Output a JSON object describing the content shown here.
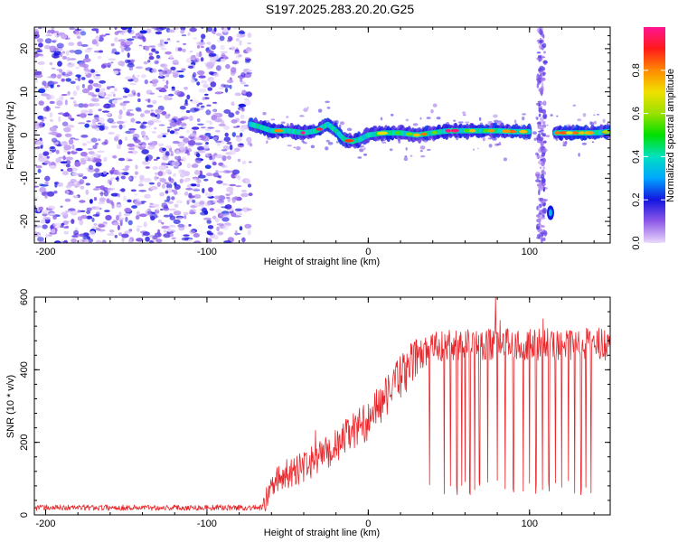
{
  "title": "S197.2025.283.20.20.G25",
  "chart_data": [
    {
      "type": "heatmap",
      "title": "S197.2025.283.20.20.G25",
      "xlabel": "Height of straight line (km)",
      "ylabel": "Frequency (Hz)",
      "xlim": [
        -207,
        150
      ],
      "ylim": [
        -25,
        25
      ],
      "xticks": [
        -200,
        -100,
        0,
        100
      ],
      "yticks": [
        -20,
        -10,
        0,
        10,
        20
      ],
      "tick_labels_x": [
        "-200",
        "-100",
        "0",
        "100"
      ],
      "tick_labels_y": [
        "-20",
        "-10",
        "0",
        "10",
        "20"
      ],
      "noise_region_x": [
        -207,
        -73
      ],
      "signal_track": {
        "x": [
          -73,
          -68,
          -60,
          -50,
          -40,
          -32,
          -25,
          -20,
          -15,
          -10,
          -5,
          0,
          10,
          20,
          30,
          40,
          50,
          60,
          70,
          80,
          90,
          95,
          100,
          105,
          110,
          115,
          120,
          130,
          140,
          150
        ],
        "freq": [
          2.5,
          2.0,
          1.0,
          1.0,
          0.5,
          1.0,
          2.5,
          1.0,
          -1.0,
          -1.5,
          -1.0,
          0.0,
          0.5,
          0.5,
          0.0,
          0.5,
          1.0,
          1.0,
          1.0,
          1.0,
          0.8,
          0.8,
          0.8,
          null,
          null,
          0.5,
          0.5,
          0.5,
          0.5,
          0.8
        ]
      },
      "gap_x": [
        105,
        113
      ],
      "spike_feature": {
        "x": 113,
        "freq": -18
      }
    },
    {
      "type": "line",
      "xlabel": "Height of straight line (km)",
      "ylabel": "SNR (10 * v/v)",
      "xlim": [
        -207,
        150
      ],
      "ylim": [
        0,
        600
      ],
      "xticks": [
        -200,
        -100,
        0,
        100
      ],
      "yticks": [
        0,
        200,
        400,
        600
      ],
      "tick_labels_x": [
        "-200",
        "-100",
        "0",
        "100"
      ],
      "tick_labels_y": [
        "0",
        "200",
        "400",
        "600"
      ],
      "line_color": "#e8262b",
      "trend": {
        "x": [
          -207,
          -150,
          -100,
          -65,
          -60,
          -50,
          -40,
          -30,
          -20,
          -10,
          0,
          10,
          20,
          30,
          40,
          60,
          80,
          100,
          120,
          150
        ],
        "snr": [
          20,
          20,
          20,
          20,
          90,
          110,
          130,
          160,
          190,
          230,
          260,
          320,
          380,
          430,
          460,
          470,
          470,
          470,
          470,
          470
        ]
      },
      "dropouts_x": [
        38,
        47,
        51,
        55,
        58,
        60,
        63,
        66,
        69,
        74,
        80,
        85,
        90,
        96,
        100,
        104,
        108,
        112,
        116,
        120,
        124,
        128,
        132,
        135,
        138
      ],
      "dropout_min": 55,
      "peak": {
        "x": 79,
        "snr": 600
      }
    }
  ],
  "colorbar": {
    "label": "Normalized spectral amplitude",
    "range": [
      0,
      1
    ],
    "ticks": [
      0.0,
      0.2,
      0.4,
      0.6,
      0.8
    ],
    "tick_labels": [
      "0.0",
      "0.2",
      "0.4",
      "0.6",
      "0.8"
    ],
    "stops": [
      {
        "v": 0.0,
        "color": "#e9d8fb"
      },
      {
        "v": 0.1,
        "color": "#8f5ae8"
      },
      {
        "v": 0.2,
        "color": "#1414e0"
      },
      {
        "v": 0.3,
        "color": "#00a6ff"
      },
      {
        "v": 0.4,
        "color": "#00e0c0"
      },
      {
        "v": 0.5,
        "color": "#00e000"
      },
      {
        "v": 0.6,
        "color": "#9ae000"
      },
      {
        "v": 0.7,
        "color": "#f0e000"
      },
      {
        "v": 0.8,
        "color": "#ff8a00"
      },
      {
        "v": 0.9,
        "color": "#ff1a1a"
      },
      {
        "v": 1.0,
        "color": "#ff1493"
      }
    ]
  }
}
